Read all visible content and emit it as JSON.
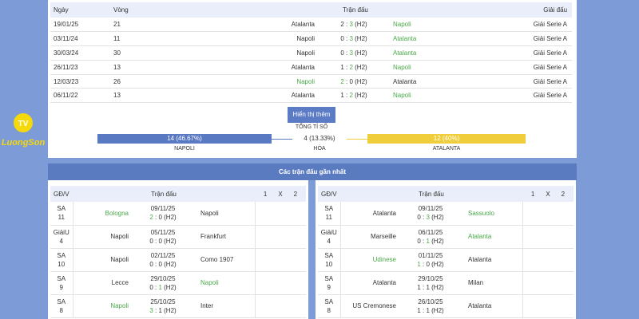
{
  "h2h": {
    "headers": {
      "date": "Ngày",
      "round": "Vòng",
      "match": "Trận đấu",
      "league": "Giải đấu"
    },
    "rows": [
      {
        "date": "19/01/25",
        "round": "21",
        "home": "Atalanta",
        "hs": "2",
        "as": "3",
        "half": "(H2)",
        "away": "Napoli",
        "league": "Giải Serie A",
        "win": "away"
      },
      {
        "date": "03/11/24",
        "round": "11",
        "home": "Napoli",
        "hs": "0",
        "as": "3",
        "half": "(H2)",
        "away": "Atalanta",
        "league": "Giải Serie A",
        "win": "away"
      },
      {
        "date": "30/03/24",
        "round": "30",
        "home": "Napoli",
        "hs": "0",
        "as": "3",
        "half": "(H2)",
        "away": "Atalanta",
        "league": "Giải Serie A",
        "win": "away"
      },
      {
        "date": "26/11/23",
        "round": "13",
        "home": "Atalanta",
        "hs": "1",
        "as": "2",
        "half": "(H2)",
        "away": "Napoli",
        "league": "Giải Serie A",
        "win": "away"
      },
      {
        "date": "12/03/23",
        "round": "26",
        "home": "Napoli",
        "hs": "2",
        "as": "0",
        "half": "(H2)",
        "away": "Atalanta",
        "league": "Giải Serie A",
        "win": "home"
      },
      {
        "date": "06/11/22",
        "round": "13",
        "home": "Atalanta",
        "hs": "1",
        "as": "2",
        "half": "(H2)",
        "away": "Napoli",
        "league": "Giải Serie A",
        "win": "away"
      }
    ],
    "show_more": "Hiển thị thêm",
    "total_label": "TỔNG TỈ SỐ",
    "stats": {
      "home": {
        "text": "14 (46.67%)",
        "label": "NAPOLI",
        "pct": 46.67,
        "color": "#5a79c3"
      },
      "draw": {
        "text": "4 (13.33%)",
        "label": "HÒA",
        "pct": 13.33
      },
      "away": {
        "text": "12 (40%)",
        "label": "ATALANTA",
        "pct": 40,
        "color": "#f0cd3a"
      }
    }
  },
  "logo": {
    "text": "LuongSon",
    "sub": "TV"
  },
  "recent": {
    "title": "Các trận đấu gần nhất",
    "headers": {
      "gd": "GĐ/V",
      "match": "Trận đấu",
      "o1": "1",
      "ox": "X",
      "o2": "2"
    },
    "left": [
      {
        "comp": "SA",
        "round": "11",
        "home": "Bologna",
        "date": "09/11/25",
        "hs": "2",
        "as": "0",
        "half": "(H2)",
        "away": "Napoli",
        "win": "home"
      },
      {
        "comp": "GiảiU",
        "round": "4",
        "home": "Napoli",
        "date": "05/11/25",
        "hs": "0",
        "as": "0",
        "half": "(H2)",
        "away": "Frankfurt",
        "win": "none"
      },
      {
        "comp": "SA",
        "round": "10",
        "home": "Napoli",
        "date": "02/11/25",
        "hs": "0",
        "as": "0",
        "half": "(H2)",
        "away": "Como 1907",
        "win": "none"
      },
      {
        "comp": "SA",
        "round": "9",
        "home": "Lecce",
        "date": "29/10/25",
        "hs": "0",
        "as": "1",
        "half": "(H2)",
        "away": "Napoli",
        "win": "away"
      },
      {
        "comp": "SA",
        "round": "8",
        "home": "Napoli",
        "date": "25/10/25",
        "hs": "3",
        "as": "1",
        "half": "(H2)",
        "away": "Inter",
        "win": "home"
      }
    ],
    "right": [
      {
        "comp": "SA",
        "round": "11",
        "home": "Atalanta",
        "date": "09/11/25",
        "hs": "0",
        "as": "3",
        "half": "(H2)",
        "away": "Sassuolo",
        "win": "away"
      },
      {
        "comp": "GiảiU",
        "round": "4",
        "home": "Marseille",
        "date": "06/11/25",
        "hs": "0",
        "as": "1",
        "half": "(H2)",
        "away": "Atalanta",
        "win": "away"
      },
      {
        "comp": "SA",
        "round": "10",
        "home": "Udinese",
        "date": "01/11/25",
        "hs": "1",
        "as": "0",
        "half": "(H2)",
        "away": "Atalanta",
        "win": "home"
      },
      {
        "comp": "SA",
        "round": "9",
        "home": "Atalanta",
        "date": "29/10/25",
        "hs": "1",
        "as": "1",
        "half": "(H2)",
        "away": "Milan",
        "win": "none"
      },
      {
        "comp": "SA",
        "round": "8",
        "home": "US Cremonese",
        "date": "26/10/25",
        "hs": "1",
        "as": "1",
        "half": "(H2)",
        "away": "Atalanta",
        "win": "none"
      }
    ]
  }
}
